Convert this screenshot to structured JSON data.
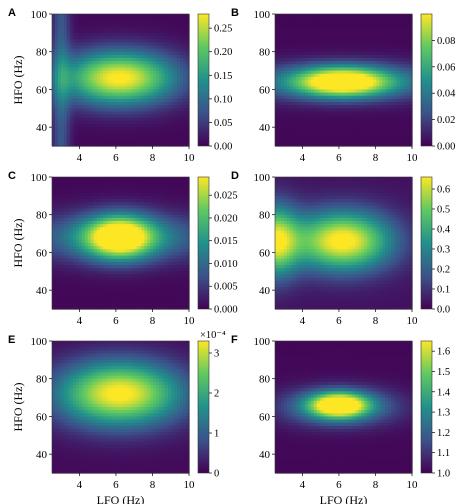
{
  "figure": {
    "colormap": [
      "#440154",
      "#3b528b",
      "#21918c",
      "#5ec962",
      "#fde725"
    ]
  },
  "chart_data": [
    {
      "panel": "A",
      "type": "heatmap",
      "xlabel": "",
      "ylabel": "HFO (Hz)",
      "xlim": [
        2.5,
        10
      ],
      "ylim": [
        30,
        100
      ],
      "xticks": [
        "4",
        "6",
        "8",
        "10"
      ],
      "yticks": [
        "40",
        "60",
        "80",
        "100"
      ],
      "colorbar": {
        "range": [
          0,
          0.28
        ],
        "ticks": [
          "0.00",
          "0.05",
          "0.10",
          "0.15",
          "0.20",
          "0.25"
        ],
        "exponent": ""
      },
      "blobs": [
        {
          "x": 6.2,
          "y": 66,
          "sx": 2.2,
          "sy": 10,
          "amp": 1.0
        }
      ],
      "base": 0.02,
      "vband": {
        "x": 3.0,
        "w": 0.35,
        "amp": 0.25
      }
    },
    {
      "panel": "B",
      "type": "heatmap",
      "xlabel": "",
      "ylabel": "",
      "xlim": [
        2.5,
        10
      ],
      "ylim": [
        30,
        100
      ],
      "xticks": [
        "4",
        "6",
        "8",
        "10"
      ],
      "yticks": [
        "40",
        "60",
        "80",
        "100"
      ],
      "colorbar": {
        "range": [
          0,
          0.1
        ],
        "ticks": [
          "0.00",
          "0.02",
          "0.04",
          "0.06",
          "0.08"
        ],
        "exponent": ""
      },
      "blobs": [
        {
          "x": 6.2,
          "y": 64,
          "sx": 1.8,
          "sy": 5.5,
          "amp": 1.0
        },
        {
          "x": 6.2,
          "y": 64,
          "sx": 5.0,
          "sy": 7,
          "amp": 0.35
        }
      ],
      "base": 0.02,
      "vband": null
    },
    {
      "panel": "C",
      "type": "heatmap",
      "xlabel": "",
      "ylabel": "HFO (Hz)",
      "xlim": [
        2.5,
        10
      ],
      "ylim": [
        30,
        100
      ],
      "xticks": [
        "4",
        "6",
        "8",
        "10"
      ],
      "yticks": [
        "40",
        "60",
        "80",
        "100"
      ],
      "colorbar": {
        "range": [
          0,
          0.029
        ],
        "ticks": [
          "0.000",
          "0.005",
          "0.010",
          "0.015",
          "0.020",
          "0.025"
        ],
        "exponent": ""
      },
      "blobs": [
        {
          "x": 6.2,
          "y": 68,
          "sx": 1.3,
          "sy": 8,
          "amp": 1.0
        },
        {
          "x": 6.2,
          "y": 68,
          "sx": 4.0,
          "sy": 9,
          "amp": 0.4
        }
      ],
      "base": 0.02,
      "vband": null
    },
    {
      "panel": "D",
      "type": "heatmap",
      "xlabel": "",
      "ylabel": "",
      "xlim": [
        2.5,
        10
      ],
      "ylim": [
        30,
        100
      ],
      "xticks": [
        "4",
        "6",
        "8",
        "10"
      ],
      "yticks": [
        "40",
        "60",
        "80",
        "100"
      ],
      "colorbar": {
        "range": [
          0,
          0.66
        ],
        "ticks": [
          "0.0",
          "0.1",
          "0.2",
          "0.3",
          "0.4",
          "0.5",
          "0.6"
        ],
        "exponent": ""
      },
      "blobs": [
        {
          "x": 6.2,
          "y": 66,
          "sx": 1.9,
          "sy": 11,
          "amp": 1.0
        },
        {
          "x": 2.5,
          "y": 66,
          "sx": 0.9,
          "sy": 13,
          "amp": 0.85
        }
      ],
      "base": 0.05,
      "vband": null
    },
    {
      "panel": "E",
      "type": "heatmap",
      "xlabel": "LFO (Hz)",
      "ylabel": "HFO (Hz)",
      "xlim": [
        2.5,
        10
      ],
      "ylim": [
        30,
        100
      ],
      "xticks": [
        "4",
        "6",
        "8",
        "10"
      ],
      "yticks": [
        "40",
        "60",
        "80",
        "100"
      ],
      "colorbar": {
        "range": [
          0,
          3.3
        ],
        "ticks": [
          "0",
          "1",
          "2",
          "3"
        ],
        "exponent": "×10⁻⁴"
      },
      "blobs": [
        {
          "x": 6.2,
          "y": 72,
          "sx": 2.4,
          "sy": 12,
          "amp": 1.0
        }
      ],
      "base": 0.03,
      "vband": null
    },
    {
      "panel": "F",
      "type": "heatmap",
      "xlabel": "LFO (Hz)",
      "ylabel": "",
      "xlim": [
        2.5,
        10
      ],
      "ylim": [
        30,
        100
      ],
      "xticks": [
        "4",
        "6",
        "8",
        "10"
      ],
      "yticks": [
        "40",
        "60",
        "80",
        "100"
      ],
      "colorbar": {
        "range": [
          1.0,
          1.65
        ],
        "ticks": [
          "1.0",
          "1.1",
          "1.2",
          "1.3",
          "1.4",
          "1.5",
          "1.6"
        ],
        "exponent": ""
      },
      "blobs": [
        {
          "x": 6.0,
          "y": 66,
          "sx": 1.1,
          "sy": 4.5,
          "amp": 1.0
        },
        {
          "x": 6.0,
          "y": 65,
          "sx": 2.2,
          "sy": 7,
          "amp": 0.45
        }
      ],
      "base": 0.02,
      "vband": null
    }
  ]
}
